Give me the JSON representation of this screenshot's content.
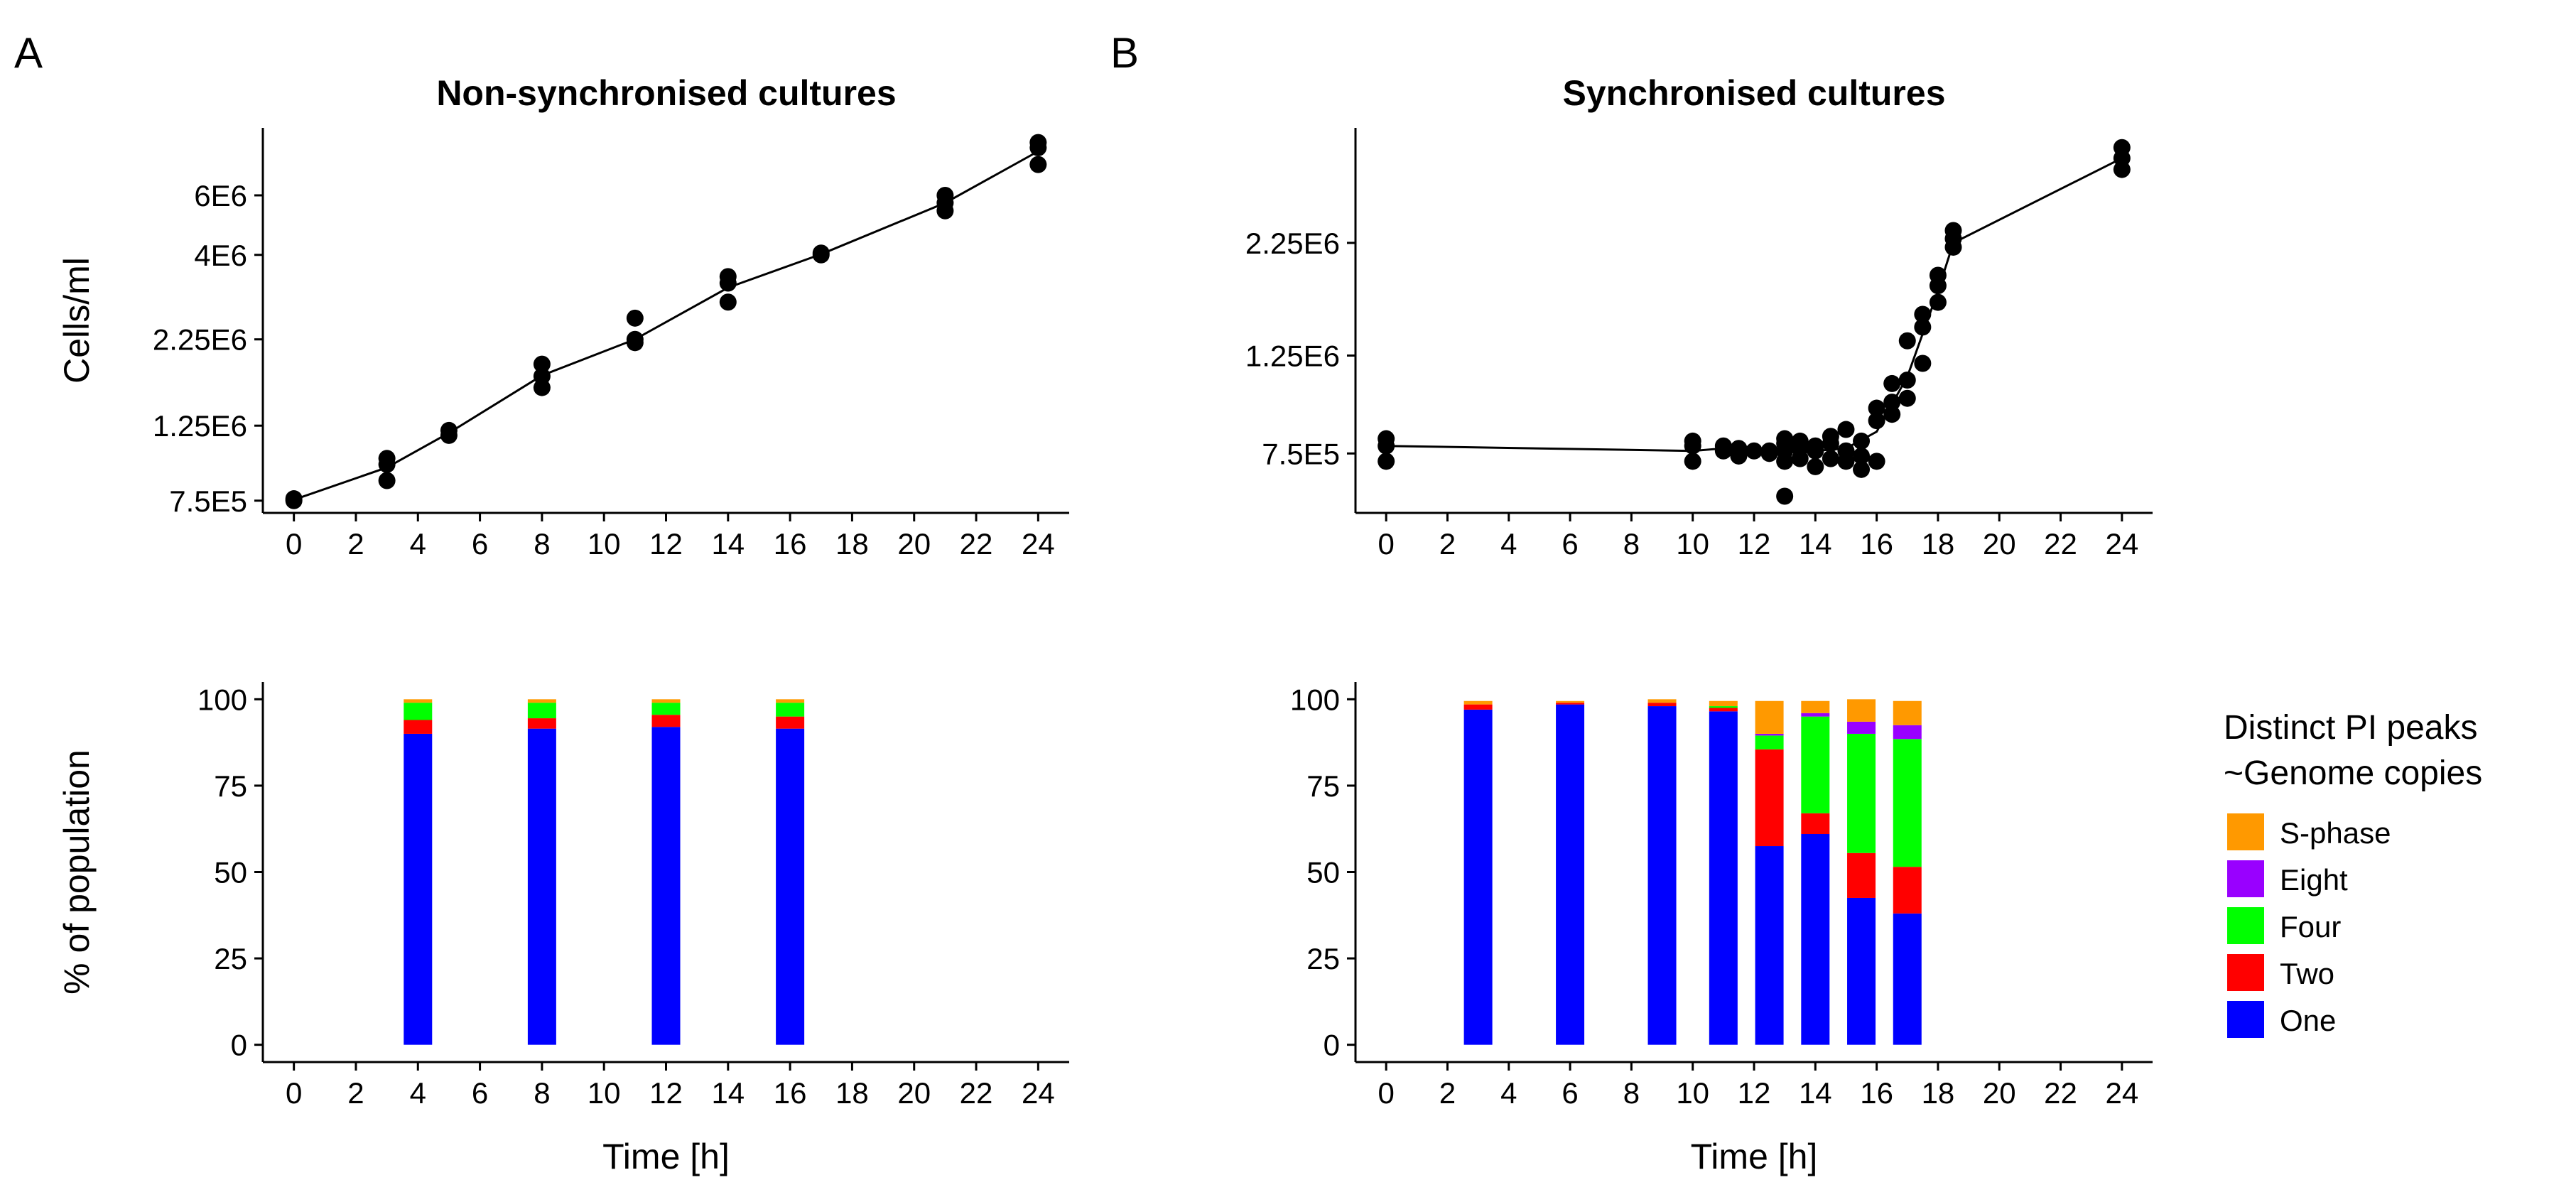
{
  "panel_labels": [
    "A",
    "B"
  ],
  "legend": {
    "title_line1": "Distinct PI peaks",
    "title_line2": "~Genome copies",
    "items": [
      {
        "name": "S-phase",
        "color": "#FF9900"
      },
      {
        "name": "Eight",
        "color": "#9900FF"
      },
      {
        "name": "Four",
        "color": "#00FF00"
      },
      {
        "name": "Two",
        "color": "#FF0000"
      },
      {
        "name": "One",
        "color": "#0000FF"
      }
    ]
  },
  "chart_data": [
    {
      "id": "A-top",
      "type": "scatter",
      "title": "Non-synchronised cultures",
      "xlabel": "",
      "ylabel": "Cells/ml",
      "xlim": [
        -1,
        25
      ],
      "ylim_log": [
        690000,
        9500000
      ],
      "x_ticks": [
        0,
        2,
        4,
        6,
        8,
        10,
        12,
        14,
        16,
        18,
        20,
        22,
        24
      ],
      "y_ticks": [
        {
          "value": 750000,
          "label": "7.5E5"
        },
        {
          "value": 1250000,
          "label": "1.25E6"
        },
        {
          "value": 2250000,
          "label": "2.25E6"
        },
        {
          "value": 4000000,
          "label": "4E6"
        },
        {
          "value": 6000000,
          "label": "6E6"
        }
      ],
      "points": [
        [
          0,
          750000
        ],
        [
          0,
          760000
        ],
        [
          3,
          860000
        ],
        [
          3,
          960000
        ],
        [
          3,
          1000000
        ],
        [
          5,
          1170000
        ],
        [
          5,
          1210000
        ],
        [
          8,
          1620000
        ],
        [
          8,
          1750000
        ],
        [
          8,
          1900000
        ],
        [
          11,
          2200000
        ],
        [
          11,
          2250000
        ],
        [
          11,
          2600000
        ],
        [
          14,
          2900000
        ],
        [
          14,
          3300000
        ],
        [
          14,
          3450000
        ],
        [
          17,
          4000000
        ],
        [
          17,
          4050000
        ],
        [
          21,
          5400000
        ],
        [
          21,
          5700000
        ],
        [
          21,
          6000000
        ],
        [
          24,
          7400000
        ],
        [
          24,
          8300000
        ],
        [
          24,
          8600000
        ]
      ],
      "line": [
        [
          0,
          755000
        ],
        [
          3,
          940000
        ],
        [
          5,
          1190000
        ],
        [
          8,
          1760000
        ],
        [
          11,
          2250000
        ],
        [
          14,
          3200000
        ],
        [
          17,
          4020000
        ],
        [
          21,
          5700000
        ],
        [
          24,
          8100000
        ]
      ]
    },
    {
      "id": "B-top",
      "type": "scatter",
      "title": "Synchronised cultures",
      "xlabel": "",
      "ylabel": "",
      "xlim": [
        -1,
        25
      ],
      "ylim_log": [
        550000,
        4100000
      ],
      "x_ticks": [
        0,
        2,
        4,
        6,
        8,
        10,
        12,
        14,
        16,
        18,
        20,
        22,
        24
      ],
      "y_ticks": [
        {
          "value": 750000,
          "label": "7.5E5"
        },
        {
          "value": 1250000,
          "label": "1.25E6"
        },
        {
          "value": 2250000,
          "label": "2.25E6"
        }
      ],
      "points": [
        [
          0,
          720000
        ],
        [
          0,
          780000
        ],
        [
          0,
          810000
        ],
        [
          10,
          720000
        ],
        [
          10,
          780000
        ],
        [
          10,
          800000
        ],
        [
          11,
          760000
        ],
        [
          11,
          780000
        ],
        [
          11.5,
          740000
        ],
        [
          11.5,
          770000
        ],
        [
          12,
          760000
        ],
        [
          12.5,
          750000
        ],
        [
          12.5,
          760000
        ],
        [
          13,
          600000
        ],
        [
          13,
          720000
        ],
        [
          13,
          760000
        ],
        [
          13,
          790000
        ],
        [
          13,
          810000
        ],
        [
          13.5,
          730000
        ],
        [
          13.5,
          770000
        ],
        [
          13.5,
          800000
        ],
        [
          14,
          700000
        ],
        [
          14,
          760000
        ],
        [
          14,
          780000
        ],
        [
          14.5,
          730000
        ],
        [
          14.5,
          790000
        ],
        [
          14.5,
          820000
        ],
        [
          15,
          720000
        ],
        [
          15,
          760000
        ],
        [
          15,
          850000
        ],
        [
          15.5,
          690000
        ],
        [
          15.5,
          740000
        ],
        [
          15.5,
          800000
        ],
        [
          16,
          720000
        ],
        [
          16,
          890000
        ],
        [
          16,
          950000
        ],
        [
          16.5,
          920000
        ],
        [
          16.5,
          980000
        ],
        [
          16.5,
          1080000
        ],
        [
          17,
          1000000
        ],
        [
          17,
          1100000
        ],
        [
          17,
          1350000
        ],
        [
          17.5,
          1200000
        ],
        [
          17.5,
          1450000
        ],
        [
          17.5,
          1550000
        ],
        [
          18,
          1650000
        ],
        [
          18,
          1800000
        ],
        [
          18,
          1900000
        ],
        [
          18.5,
          2200000
        ],
        [
          18.5,
          2300000
        ],
        [
          18.5,
          2400000
        ],
        [
          24,
          3300000
        ],
        [
          24,
          3500000
        ],
        [
          24,
          3700000
        ]
      ],
      "line": [
        [
          0,
          780000
        ],
        [
          10,
          760000
        ],
        [
          11,
          770000
        ],
        [
          12,
          765000
        ],
        [
          13,
          760000
        ],
        [
          14,
          760000
        ],
        [
          15,
          770000
        ],
        [
          16,
          840000
        ],
        [
          17,
          1120000
        ],
        [
          18,
          1750000
        ],
        [
          18.5,
          2250000
        ],
        [
          24,
          3500000
        ]
      ]
    },
    {
      "id": "A-bottom",
      "type": "bar",
      "title": "",
      "xlabel": "Time [h]",
      "ylabel": "% of population",
      "xlim": [
        -1,
        25
      ],
      "ylim": [
        -5,
        105
      ],
      "x_ticks": [
        0,
        2,
        4,
        6,
        8,
        10,
        12,
        14,
        16,
        18,
        20,
        22,
        24
      ],
      "y_ticks": [
        0,
        25,
        50,
        75,
        100
      ],
      "stack_order": [
        "One",
        "Two",
        "Four",
        "Eight",
        "S-phase"
      ],
      "bars": [
        {
          "x": 4,
          "One": 90,
          "Two": 4,
          "Four": 5,
          "Eight": 0,
          "S-phase": 1
        },
        {
          "x": 8,
          "One": 91.5,
          "Two": 3,
          "Four": 4.5,
          "Eight": 0,
          "S-phase": 1
        },
        {
          "x": 12,
          "One": 92,
          "Two": 3.5,
          "Four": 3.5,
          "Eight": 0,
          "S-phase": 1
        },
        {
          "x": 16,
          "One": 91.5,
          "Two": 3.5,
          "Four": 4,
          "Eight": 0,
          "S-phase": 1
        }
      ]
    },
    {
      "id": "B-bottom",
      "type": "bar",
      "title": "",
      "xlabel": "Time [h]",
      "ylabel": "",
      "xlim": [
        -1,
        25
      ],
      "ylim": [
        -5,
        105
      ],
      "x_ticks": [
        0,
        2,
        4,
        6,
        8,
        10,
        12,
        14,
        16,
        18,
        20,
        22,
        24
      ],
      "y_ticks": [
        0,
        25,
        50,
        75,
        100
      ],
      "stack_order": [
        "One",
        "Two",
        "Four",
        "Eight",
        "S-phase"
      ],
      "bars": [
        {
          "x": 3,
          "One": 97,
          "Two": 1.5,
          "Four": 0,
          "Eight": 0,
          "S-phase": 1
        },
        {
          "x": 6,
          "One": 98.5,
          "Two": 0.5,
          "Four": 0,
          "Eight": 0,
          "S-phase": 0.5
        },
        {
          "x": 9,
          "One": 98,
          "Two": 1,
          "Four": 0,
          "Eight": 0,
          "S-phase": 1
        },
        {
          "x": 11,
          "One": 96.5,
          "Two": 1,
          "Four": 0.5,
          "Eight": 0,
          "S-phase": 1.5
        },
        {
          "x": 12.5,
          "One": 57.5,
          "Two": 28,
          "Four": 4,
          "Eight": 0.5,
          "S-phase": 9.5
        },
        {
          "x": 14,
          "One": 61,
          "Two": 6,
          "Four": 28,
          "Eight": 1,
          "S-phase": 3.5
        },
        {
          "x": 15.5,
          "One": 42.5,
          "Two": 13,
          "Four": 34.5,
          "Eight": 3.5,
          "S-phase": 6.5
        },
        {
          "x": 17,
          "One": 38,
          "Two": 13.5,
          "Four": 37,
          "Eight": 4,
          "S-phase": 7
        }
      ]
    }
  ]
}
